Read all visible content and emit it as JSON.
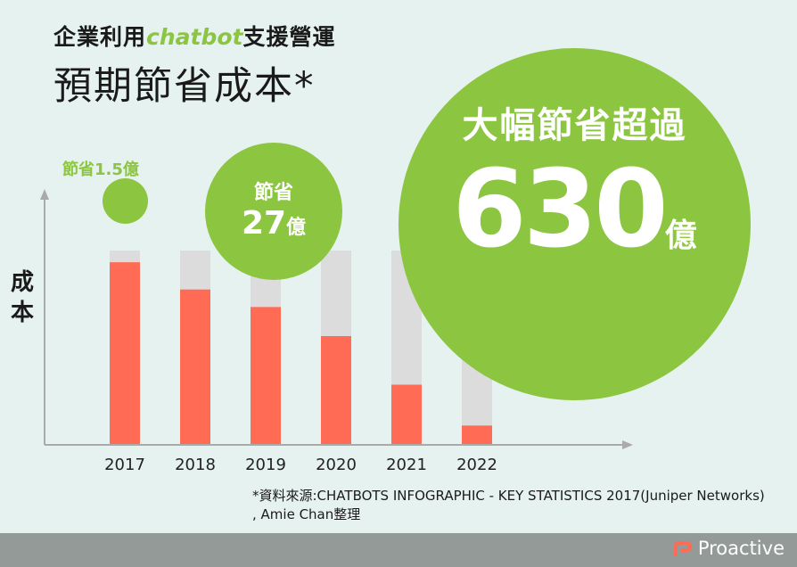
{
  "title": {
    "line1_prefix": "企業利用",
    "line1_brand": "chatbot",
    "line1_suffix": "支援營運",
    "line2": "預期節省成本*"
  },
  "ylabel": "成本",
  "bubbles": {
    "b1_label": "節省1.5億",
    "b2_line1": "節省",
    "b2_value": "27",
    "b2_unit": "億",
    "b3_line1": "大幅節省超過",
    "b3_value": "630",
    "b3_unit": "億"
  },
  "source": {
    "line1": "*資料來源:CHATBOTS INFOGRAPHIC - KEY STATISTICS 2017(Juniper Networks)",
    "line2": ", Amie Chan整理"
  },
  "brand": {
    "name": "Proactive"
  },
  "colors": {
    "cost": "#ff6b55",
    "saving": "#dcdcdc",
    "bubble": "#8cc540",
    "axis": "#aaaaaa"
  },
  "chart_data": {
    "type": "bar",
    "stacked": true,
    "categories": [
      "2017",
      "2018",
      "2019",
      "2020",
      "2021",
      "2022"
    ],
    "series": [
      {
        "values": [
          94,
          80,
          71,
          56,
          31,
          10
        ]
      },
      {
        "values": [
          6,
          20,
          29,
          44,
          69,
          90
        ]
      }
    ],
    "ylim": [
      0,
      100
    ],
    "grid": false
  }
}
